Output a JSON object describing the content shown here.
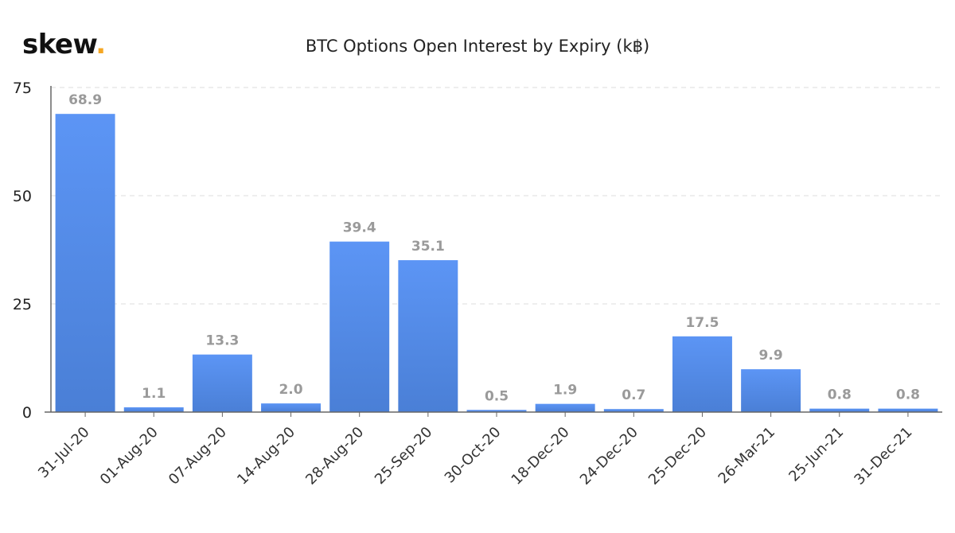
{
  "brand": {
    "name": "skew",
    "dot": "."
  },
  "chart_data": {
    "type": "bar",
    "title": "BTC Options Open Interest by Expiry (k฿)",
    "xlabel": "",
    "ylabel": "",
    "ylim": [
      0,
      75
    ],
    "yticks": [
      0,
      25,
      50,
      75
    ],
    "grid": true,
    "categories": [
      "31-Jul-20",
      "01-Aug-20",
      "07-Aug-20",
      "14-Aug-20",
      "28-Aug-20",
      "25-Sep-20",
      "30-Oct-20",
      "18-Dec-20",
      "24-Dec-20",
      "25-Dec-20",
      "26-Mar-21",
      "25-Jun-21",
      "31-Dec-21"
    ],
    "values": [
      68.9,
      1.1,
      13.3,
      2.0,
      39.4,
      35.1,
      0.5,
      1.9,
      0.7,
      17.5,
      9.9,
      0.8,
      0.8
    ],
    "value_labels": [
      "68.9",
      "1.1",
      "13.3",
      "2.0",
      "39.4",
      "35.1",
      "0.5",
      "1.9",
      "0.7",
      "17.5",
      "9.9",
      "0.8",
      "0.8"
    ],
    "colors": {
      "bar_top": "#5c95f5",
      "bar_bottom": "#4a7fd6",
      "label": "#9a9a9a",
      "grid": "#dddddd",
      "axis": "#666666"
    }
  }
}
